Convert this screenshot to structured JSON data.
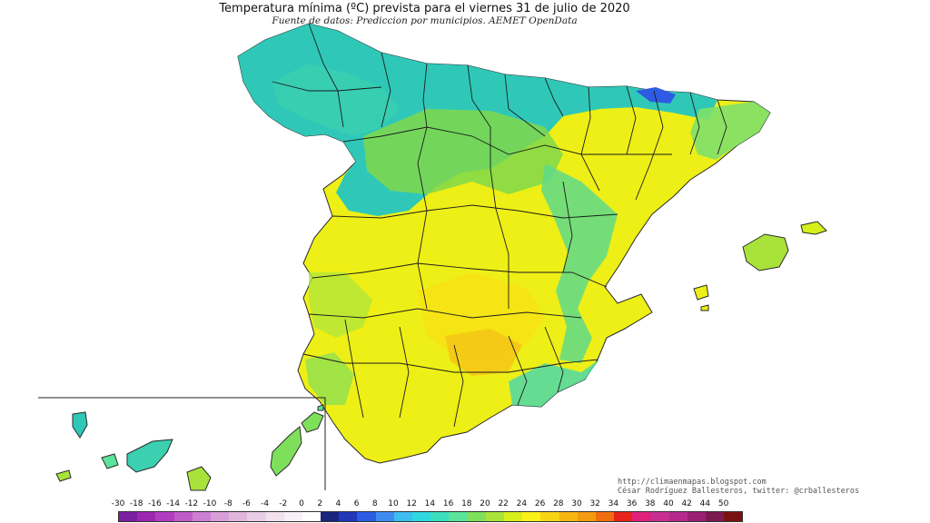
{
  "title": "Temperatura mínima (ºC) prevista para el viernes 31 de julio de 2020",
  "subtitle": "Fuente de datos: Prediccion por municipios. AEMET OpenData",
  "credits": {
    "blog": "http://climaenmapas.blogspot.com",
    "author": "César Rodríguez Ballesteros, twitter: @crballesteros"
  },
  "legend": {
    "unit": "ºC",
    "labels": [
      "-30",
      "-18",
      "-16",
      "-14",
      "-12",
      "-10",
      "-8",
      "-6",
      "-4",
      "-2",
      "0",
      "2",
      "4",
      "6",
      "8",
      "10",
      "12",
      "14",
      "16",
      "18",
      "20",
      "22",
      "24",
      "26",
      "28",
      "30",
      "32",
      "34",
      "36",
      "38",
      "40",
      "42",
      "44",
      "50"
    ],
    "colors": [
      "#7b1fa2",
      "#9c27b0",
      "#b23cc0",
      "#c05cc8",
      "#cc7fd2",
      "#d79ed8",
      "#e0b6dd",
      "#e9cde6",
      "#f1e1ef",
      "#f8f0f7",
      "#ffffff",
      "#1a237e",
      "#2236b8",
      "#2d5be3",
      "#3f8cf0",
      "#3dbdf0",
      "#2fd8e0",
      "#3ddec0",
      "#5be39a",
      "#7ee05a",
      "#a8e23a",
      "#d7ef1a",
      "#fbf11a",
      "#f7d414",
      "#f6b510",
      "#f39a0e",
      "#f16e0e",
      "#e8231c",
      "#e0207a",
      "#c92f91",
      "#b52a8c",
      "#992072",
      "#7c1a50",
      "#7a1111"
    ]
  },
  "map": {
    "background": "#ffffff",
    "border_color": "#1b1b1b",
    "coast_color": "#2a2a2a"
  }
}
